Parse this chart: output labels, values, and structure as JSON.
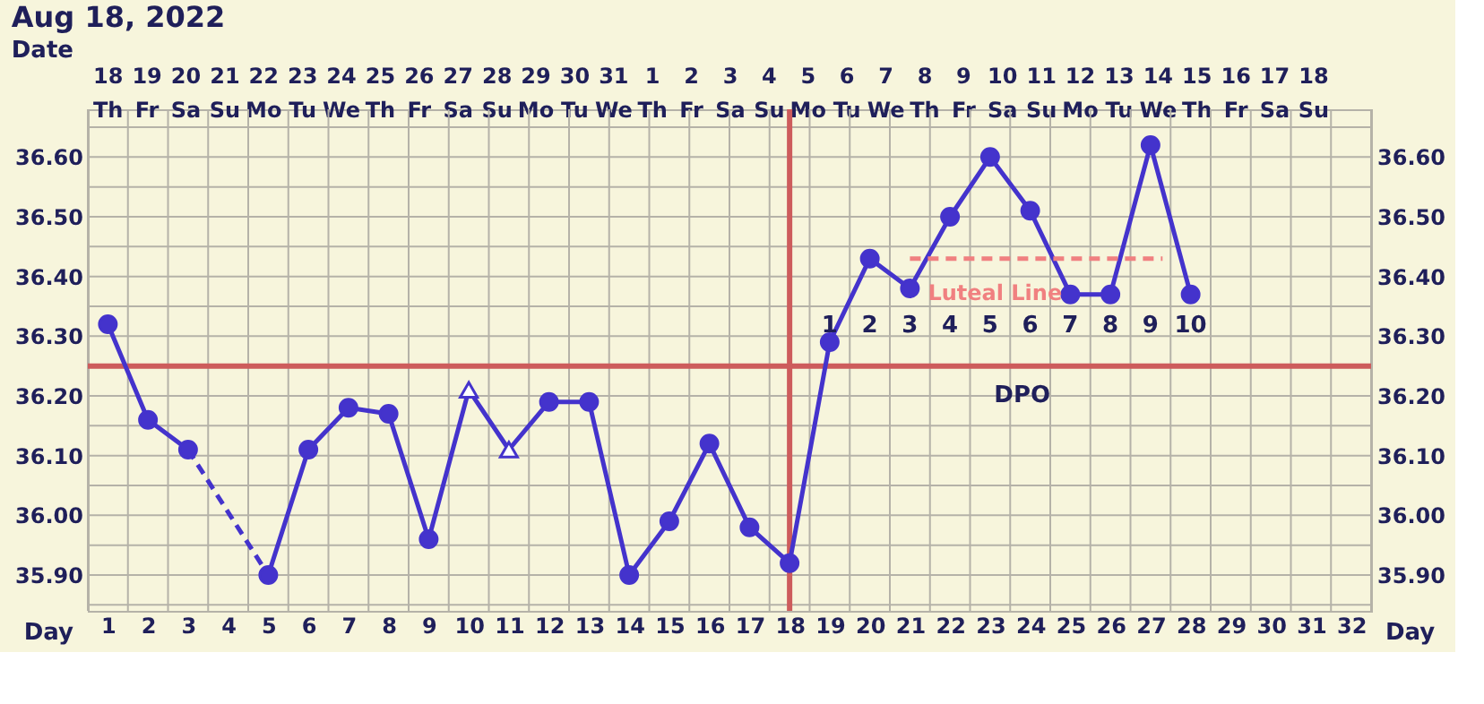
{
  "chart_data": {
    "type": "line",
    "title": "Aug 18, 2022",
    "xlabel": "Day",
    "x2label": "Date",
    "xlim": [
      0.5,
      32.5
    ],
    "xticks": [
      {
        "value": 0.5,
        "label": null
      },
      1,
      {
        "value": 1.5,
        "label": null
      },
      2,
      {
        "value": 2.5,
        "label": null
      },
      3,
      {
        "value": 3.5,
        "label": null
      },
      4,
      {
        "value": 4.5,
        "label": null
      },
      5,
      {
        "value": 5.5,
        "label": null
      },
      6,
      {
        "value": 6.5,
        "label": null
      },
      7,
      {
        "value": 7.5,
        "label": null
      },
      8,
      {
        "value": 8.5,
        "label": null
      },
      9,
      {
        "value": 9.5,
        "label": null
      },
      10,
      {
        "value": 10.5,
        "label": null
      },
      11,
      {
        "value": 11.5,
        "label": null
      },
      12,
      {
        "value": 12.5,
        "label": null
      },
      13,
      {
        "value": 13.5,
        "label": null
      },
      14,
      {
        "value": 14.5,
        "label": null
      },
      15,
      {
        "value": 15.5,
        "label": null
      },
      16,
      {
        "value": 16.5,
        "label": null
      },
      17,
      {
        "value": 17.5,
        "label": null
      },
      18,
      {
        "value": 18.5,
        "label": null
      },
      19,
      {
        "value": 19.5,
        "label": null
      },
      20,
      {
        "value": 20.5,
        "label": null
      },
      21,
      {
        "value": 21.5,
        "label": null
      },
      22,
      {
        "value": 22.5,
        "label": null
      },
      23,
      {
        "value": 23.5,
        "label": null
      },
      24,
      {
        "value": 24.5,
        "label": null
      },
      25,
      {
        "value": 25.5,
        "label": null
      },
      26,
      {
        "value": 26.5,
        "label": null
      },
      27,
      {
        "value": 27.5,
        "label": null
      },
      28,
      {
        "value": 28.5,
        "label": null
      },
      29,
      {
        "value": 29.5,
        "label": null
      },
      30,
      {
        "value": 30.5,
        "label": null
      },
      31,
      {
        "value": 31.5,
        "label": null
      },
      32,
      {
        "value": 32.5,
        "label": null
      }
    ],
    "x2lim": [
      "2022-07-17T12:00",
      "2022-08-19T12:00"
    ],
    "x2ticks": [
      {
        "value": "2022-07-18",
        "label": "18\nTh"
      },
      {
        "value": "2022-07-19",
        "label": "19\nFr"
      },
      {
        "value": "2022-07-20",
        "label": "20\nSa"
      },
      {
        "value": "2022-07-21",
        "label": "21\nSu"
      },
      {
        "value": "2022-07-22",
        "label": "22\nMo"
      },
      {
        "value": "2022-07-23",
        "label": "23\nTu"
      },
      {
        "value": "2022-07-24",
        "label": "24\nWe"
      },
      {
        "value": "2022-07-25",
        "label": "25\nTh"
      },
      {
        "value": "2022-07-26",
        "label": "26\nFr"
      },
      {
        "value": "2022-07-27",
        "label": "27\nSa"
      },
      {
        "value": "2022-07-28",
        "label": "28\nSu"
      },
      {
        "value": "2022-07-29",
        "label": "29\nMo"
      },
      {
        "value": "2022-07-30",
        "label": "30\nTu"
      },
      {
        "value": "2022-07-31",
        "label": "31\nWe"
      },
      {
        "value": "2022-08-01",
        "label": "1\nTh"
      },
      {
        "value": "2022-08-02",
        "label": "2\nFr"
      },
      {
        "value": "2022-08-03",
        "label": "3\nSa"
      },
      {
        "value": "2022-08-04",
        "label": "4\nSu"
      },
      {
        "value": "2022-08-05",
        "label": "5\nMo"
      },
      {
        "value": "2022-08-06",
        "label": "6\nTu"
      },
      {
        "value": "2022-08-07",
        "label": "7\nWe"
      },
      {
        "value": "2022-08-08",
        "label": "8\nTh"
      },
      {
        "value": "2022-08-09",
        "label": "9\nFr"
      },
      {
        "value": "2022-08-10",
        "label": "10\nSa"
      },
      {
        "value": "2022-08-11",
        "label": "11\nSu"
      },
      {
        "value": "2022-08-12",
        "label": "12\nMo"
      },
      {
        "value": "2022-08-13",
        "label": "13\nTu"
      },
      {
        "value": "2022-08-14",
        "label": "14\nWe"
      },
      {
        "value": "2022-08-15",
        "label": "15\nTh"
      },
      {
        "value": "2022-08-16",
        "label": "16\nFr"
      },
      {
        "value": "2022-08-17",
        "label": "17\nSa"
      },
      {
        "value": "2022-08-18",
        "label": "18\nSu"
      }
    ],
    "ylim": [
      35.84,
      36.68
    ],
    "yticks": [
      {
        "value": 35.85,
        "label": null
      },
      {
        "value": 35.9,
        "label": "35.90"
      },
      {
        "value": 35.95,
        "label": null
      },
      {
        "value": 36.0,
        "label": "36.00"
      },
      {
        "value": 36.05,
        "label": null
      },
      {
        "value": 36.1,
        "label": "36.10"
      },
      {
        "value": 36.15,
        "label": null
      },
      {
        "value": 36.2,
        "label": "36.20"
      },
      {
        "value": 36.3,
        "label": "36.30"
      },
      {
        "value": 36.35,
        "label": null
      },
      {
        "value": 36.4,
        "label": "36.40"
      },
      {
        "value": 36.45,
        "label": null
      },
      {
        "value": 36.5,
        "label": "36.50"
      },
      {
        "value": 36.55,
        "label": null
      },
      {
        "value": 36.6,
        "label": "36.60"
      },
      {
        "value": 36.65,
        "label": null
      }
    ],
    "y2lim": [
      35.84,
      36.68
    ],
    "y2ticks": [
      {
        "value": 35.85,
        "label": null
      },
      {
        "value": 35.9,
        "label": "35.90"
      },
      {
        "value": 35.95,
        "label": null
      },
      {
        "value": 36.0,
        "label": "36.00"
      },
      {
        "value": 36.05,
        "label": null
      },
      {
        "value": 36.1,
        "label": "36.10"
      },
      {
        "value": 36.15,
        "label": null
      },
      {
        "value": 36.2,
        "label": "36.20"
      },
      {
        "value": 36.3,
        "label": "36.30"
      },
      {
        "value": 36.35,
        "label": null
      },
      {
        "value": 36.4,
        "label": "36.40"
      },
      {
        "value": 36.45,
        "label": null
      },
      {
        "value": 36.5,
        "label": "36.50"
      },
      {
        "value": 36.55,
        "label": null
      },
      {
        "value": 36.6,
        "label": "36.60"
      },
      {
        "value": 36.65,
        "label": null
      }
    ],
    "grid": true,
    "series": [
      {
        "color": "#4433cc",
        "marker": "none",
        "line_style": "solid",
        "x": [
          1,
          2,
          3
        ],
        "values": [
          36.32,
          36.16,
          36.11
        ]
      },
      {
        "color": "#4433cc",
        "marker": "none",
        "line_style": "solid",
        "x": [
          5,
          6,
          7,
          8,
          9,
          10,
          11,
          12,
          13,
          14,
          15,
          16,
          17,
          18,
          19,
          20,
          21,
          22,
          23,
          24,
          25,
          26,
          27,
          28
        ],
        "values": [
          35.9,
          36.11,
          36.18,
          36.17,
          35.96,
          36.21,
          36.11,
          36.19,
          36.19,
          35.9,
          35.99,
          36.12,
          35.98,
          35.92,
          36.29,
          36.43,
          36.38,
          36.5,
          36.6,
          36.51,
          36.37,
          36.37,
          36.62,
          36.37
        ]
      },
      {
        "type": "line",
        "color": "#4433cc",
        "marker": "none",
        "line_style": "dashed",
        "x": [
          3,
          5
        ],
        "values": [
          36.11,
          35.9
        ]
      },
      {
        "type": "scatter",
        "color": "#4433cc",
        "marker": "circle",
        "x": [
          1,
          2,
          3,
          5,
          6,
          7,
          8,
          9,
          12,
          13,
          14,
          15,
          16,
          17,
          18,
          19,
          20,
          21,
          22,
          23,
          24,
          25,
          26,
          27,
          28
        ],
        "values": [
          36.32,
          36.16,
          36.11,
          35.9,
          36.11,
          36.18,
          36.17,
          35.96,
          36.19,
          36.19,
          35.9,
          35.99,
          36.12,
          35.98,
          35.92,
          36.29,
          36.43,
          36.38,
          36.5,
          36.6,
          36.51,
          36.37,
          36.37,
          36.62,
          36.37
        ]
      },
      {
        "type": "scatter",
        "color": "#4433cc",
        "marker": "triangle",
        "x": [
          10,
          11
        ],
        "values": [
          36.21,
          36.11
        ]
      },
      {
        "type": "line",
        "name": "Luteal Line",
        "color": "#f08080",
        "marker": "none",
        "line_style": "dashed",
        "x": [
          21,
          27.3
        ],
        "values": [
          36.43,
          36.43
        ]
      }
    ],
    "ref_lines": [
      {
        "axis": "y",
        "value": 36.25,
        "color": "#cd5c5c"
      },
      {
        "axis": "x",
        "value": 18,
        "color": "#cd5c5c"
      }
    ],
    "annotations": [
      "1",
      "2",
      "3",
      "4",
      "5",
      "6",
      "7",
      "8",
      "9",
      "10",
      "DPO"
    ]
  }
}
